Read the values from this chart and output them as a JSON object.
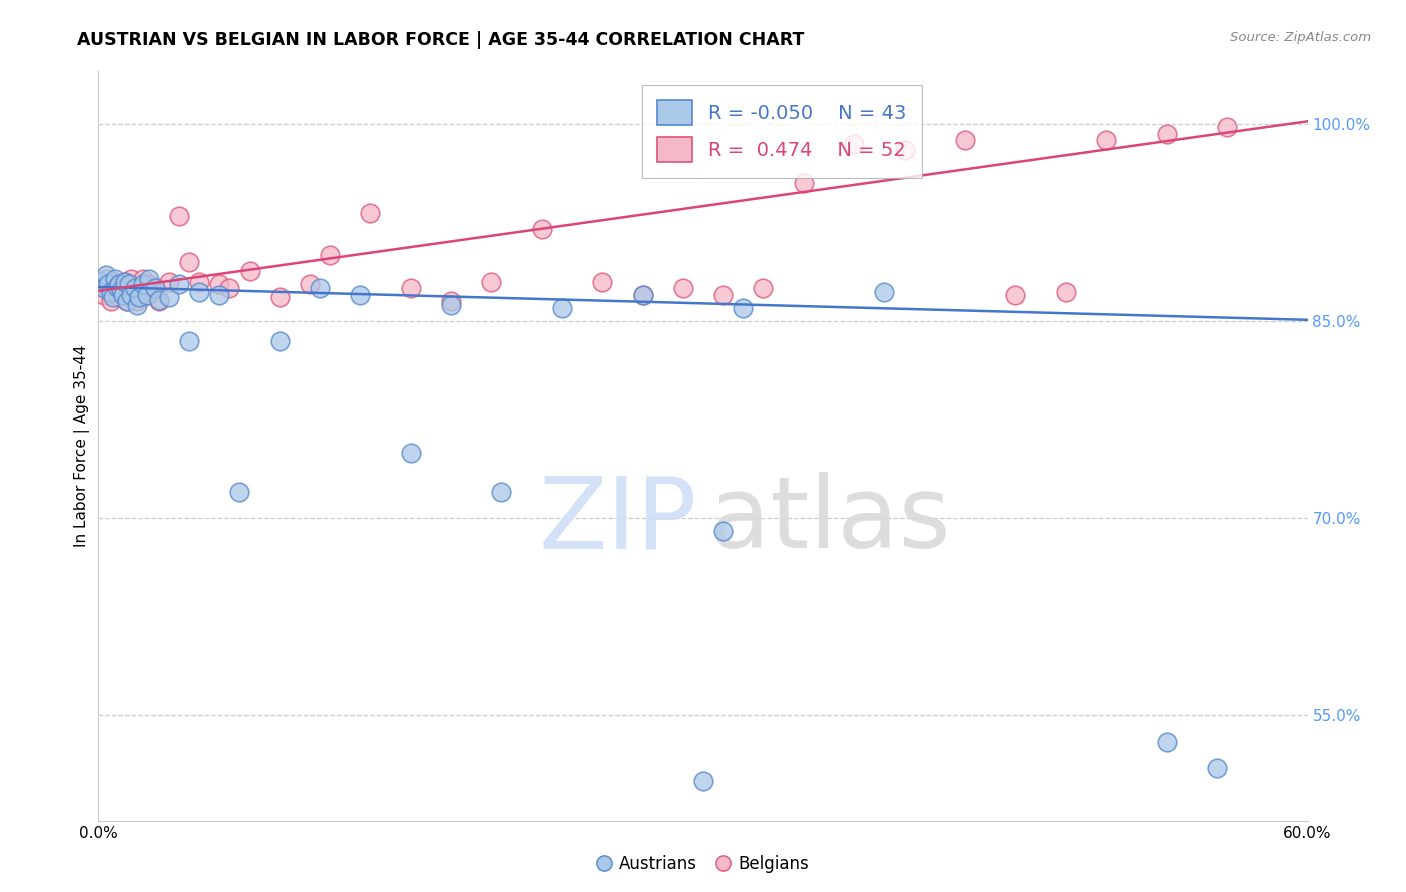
{
  "title": "AUSTRIAN VS BELGIAN IN LABOR FORCE | AGE 35-44 CORRELATION CHART",
  "source": "Source: ZipAtlas.com",
  "ylabel": "In Labor Force | Age 35-44",
  "xlim": [
    0.0,
    0.6
  ],
  "ylim": [
    0.47,
    1.04
  ],
  "ytick_vals": [
    0.55,
    0.7,
    0.85,
    1.0
  ],
  "ytick_labels": [
    "55.0%",
    "70.0%",
    "85.0%",
    "100.0%"
  ],
  "background_color": "#ffffff",
  "austrians_color": "#aac8e8",
  "belgians_color": "#f4b8c8",
  "austrians_edge_color": "#5588cc",
  "belgians_edge_color": "#dd5577",
  "austrians_line_color": "#4477cc",
  "belgians_line_color": "#dd4477",
  "legend_austrians_label": "Austrians",
  "legend_belgians_label": "Belgians",
  "R_austrians": -0.05,
  "N_austrians": 43,
  "R_belgians": 0.474,
  "N_belgians": 52,
  "aus_line_x0": 0.0,
  "aus_line_y0": 0.876,
  "aus_line_x1": 0.6,
  "aus_line_y1": 0.851,
  "bel_line_x0": 0.0,
  "bel_line_y0": 0.873,
  "bel_line_x1": 0.6,
  "bel_line_y1": 1.002,
  "austrians_x": [
    0.002,
    0.003,
    0.004,
    0.005,
    0.006,
    0.007,
    0.008,
    0.009,
    0.01,
    0.011,
    0.012,
    0.013,
    0.014,
    0.015,
    0.016,
    0.018,
    0.019,
    0.02,
    0.022,
    0.024,
    0.025,
    0.028,
    0.03,
    0.035,
    0.04,
    0.045,
    0.05,
    0.06,
    0.07,
    0.09,
    0.11,
    0.13,
    0.155,
    0.175,
    0.2,
    0.23,
    0.27,
    0.3,
    0.32,
    0.39,
    0.31,
    0.53,
    0.555
  ],
  "austrians_y": [
    0.88,
    0.875,
    0.885,
    0.878,
    0.872,
    0.868,
    0.882,
    0.876,
    0.878,
    0.874,
    0.87,
    0.88,
    0.865,
    0.878,
    0.87,
    0.875,
    0.862,
    0.868,
    0.878,
    0.87,
    0.882,
    0.875,
    0.866,
    0.868,
    0.878,
    0.835,
    0.872,
    0.87,
    0.72,
    0.835,
    0.875,
    0.87,
    0.75,
    0.862,
    0.72,
    0.86,
    0.87,
    0.5,
    0.86,
    0.872,
    0.69,
    0.53,
    0.51
  ],
  "belgians_x": [
    0.002,
    0.003,
    0.004,
    0.005,
    0.006,
    0.007,
    0.008,
    0.009,
    0.01,
    0.011,
    0.012,
    0.013,
    0.014,
    0.015,
    0.016,
    0.018,
    0.019,
    0.02,
    0.022,
    0.024,
    0.025,
    0.028,
    0.03,
    0.035,
    0.04,
    0.045,
    0.05,
    0.06,
    0.065,
    0.075,
    0.09,
    0.105,
    0.115,
    0.135,
    0.155,
    0.175,
    0.195,
    0.22,
    0.25,
    0.27,
    0.29,
    0.31,
    0.33,
    0.35,
    0.375,
    0.4,
    0.43,
    0.455,
    0.48,
    0.5,
    0.53,
    0.56
  ],
  "belgians_y": [
    0.877,
    0.87,
    0.882,
    0.875,
    0.865,
    0.875,
    0.88,
    0.872,
    0.868,
    0.875,
    0.87,
    0.88,
    0.865,
    0.878,
    0.882,
    0.87,
    0.865,
    0.875,
    0.882,
    0.87,
    0.878,
    0.875,
    0.865,
    0.88,
    0.93,
    0.895,
    0.88,
    0.878,
    0.875,
    0.888,
    0.868,
    0.878,
    0.9,
    0.932,
    0.875,
    0.865,
    0.88,
    0.92,
    0.88,
    0.87,
    0.875,
    0.87,
    0.875,
    0.955,
    0.985,
    0.98,
    0.988,
    0.87,
    0.872,
    0.988,
    0.992,
    0.998
  ]
}
